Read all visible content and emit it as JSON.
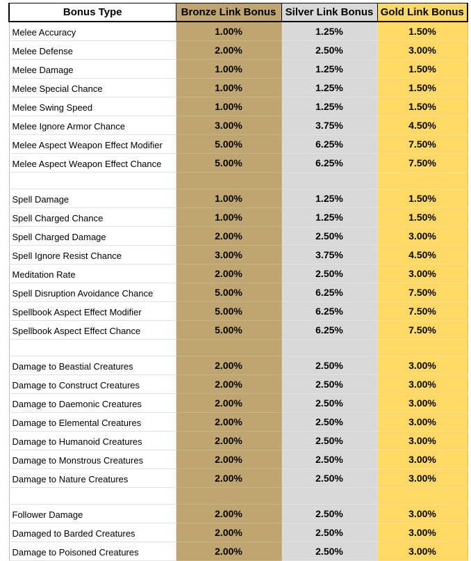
{
  "header": {
    "bonus_type": "Bonus Type",
    "bronze": "Bronze Link Bonus",
    "silver": "Silver Link Bonus",
    "gold": "Gold Link Bonus"
  },
  "colors": {
    "bronze": "#bfa570",
    "silver": "#d9d9d9",
    "gold": "#fed965"
  },
  "rows": [
    {
      "name": "Melee Accuracy",
      "bronze": "1.00%",
      "silver": "1.25%",
      "gold": "1.50%"
    },
    {
      "name": "Melee Defense",
      "bronze": "2.00%",
      "silver": "2.50%",
      "gold": "3.00%"
    },
    {
      "name": "Melee Damage",
      "bronze": "1.00%",
      "silver": "1.25%",
      "gold": "1.50%"
    },
    {
      "name": "Melee Special Chance",
      "bronze": "1.00%",
      "silver": "1.25%",
      "gold": "1.50%"
    },
    {
      "name": "Melee Swing Speed",
      "bronze": "1.00%",
      "silver": "1.25%",
      "gold": "1.50%"
    },
    {
      "name": "Melee Ignore Armor Chance",
      "bronze": "3.00%",
      "silver": "3.75%",
      "gold": "4.50%"
    },
    {
      "name": "Melee Aspect Weapon Effect Modifier",
      "bronze": "5.00%",
      "silver": "6.25%",
      "gold": "7.50%"
    },
    {
      "name": "Melee Aspect Weapon Effect Chance",
      "bronze": "5.00%",
      "silver": "6.25%",
      "gold": "7.50%"
    },
    {
      "spacer": true
    },
    {
      "name": "Spell Damage",
      "bronze": "1.00%",
      "silver": "1.25%",
      "gold": "1.50%"
    },
    {
      "name": "Spell Charged Chance",
      "bronze": "1.00%",
      "silver": "1.25%",
      "gold": "1.50%"
    },
    {
      "name": "Spell Charged Damage",
      "bronze": "2.00%",
      "silver": "2.50%",
      "gold": "3.00%"
    },
    {
      "name": "Spell Ignore Resist Chance",
      "bronze": "3.00%",
      "silver": "3.75%",
      "gold": "4.50%"
    },
    {
      "name": "Meditation Rate",
      "bronze": "2.00%",
      "silver": "2.50%",
      "gold": "3.00%"
    },
    {
      "name": "Spell Disruption Avoidance Chance",
      "bronze": "5.00%",
      "silver": "6.25%",
      "gold": "7.50%"
    },
    {
      "name": "Spellbook Aspect Effect Modifier",
      "bronze": "5.00%",
      "silver": "6.25%",
      "gold": "7.50%"
    },
    {
      "name": "Spellbook Aspect Effect Chance",
      "bronze": "5.00%",
      "silver": "6.25%",
      "gold": "7.50%"
    },
    {
      "spacer": true
    },
    {
      "name": "Damage to Beastial Creatures",
      "bronze": "2.00%",
      "silver": "2.50%",
      "gold": "3.00%"
    },
    {
      "name": "Damage to Construct Creatures",
      "bronze": "2.00%",
      "silver": "2.50%",
      "gold": "3.00%"
    },
    {
      "name": "Damage to Daemonic Creatures",
      "bronze": "2.00%",
      "silver": "2.50%",
      "gold": "3.00%"
    },
    {
      "name": "Damage to Elemental Creatures",
      "bronze": "2.00%",
      "silver": "2.50%",
      "gold": "3.00%"
    },
    {
      "name": "Damage to Humanoid Creatures",
      "bronze": "2.00%",
      "silver": "2.50%",
      "gold": "3.00%"
    },
    {
      "name": "Damage to Monstrous Creatures",
      "bronze": "2.00%",
      "silver": "2.50%",
      "gold": "3.00%"
    },
    {
      "name": "Damage to Nature Creatures",
      "bronze": "2.00%",
      "silver": "2.50%",
      "gold": "3.00%"
    },
    {
      "spacer": true
    },
    {
      "name": "Follower Damage",
      "bronze": "2.00%",
      "silver": "2.50%",
      "gold": "3.00%"
    },
    {
      "name": "Damaged to Barded Creatures",
      "bronze": "2.00%",
      "silver": "2.50%",
      "gold": "3.00%"
    },
    {
      "name": "Damage to Poisoned Creatures",
      "bronze": "2.00%",
      "silver": "2.50%",
      "gold": "3.00%"
    }
  ]
}
